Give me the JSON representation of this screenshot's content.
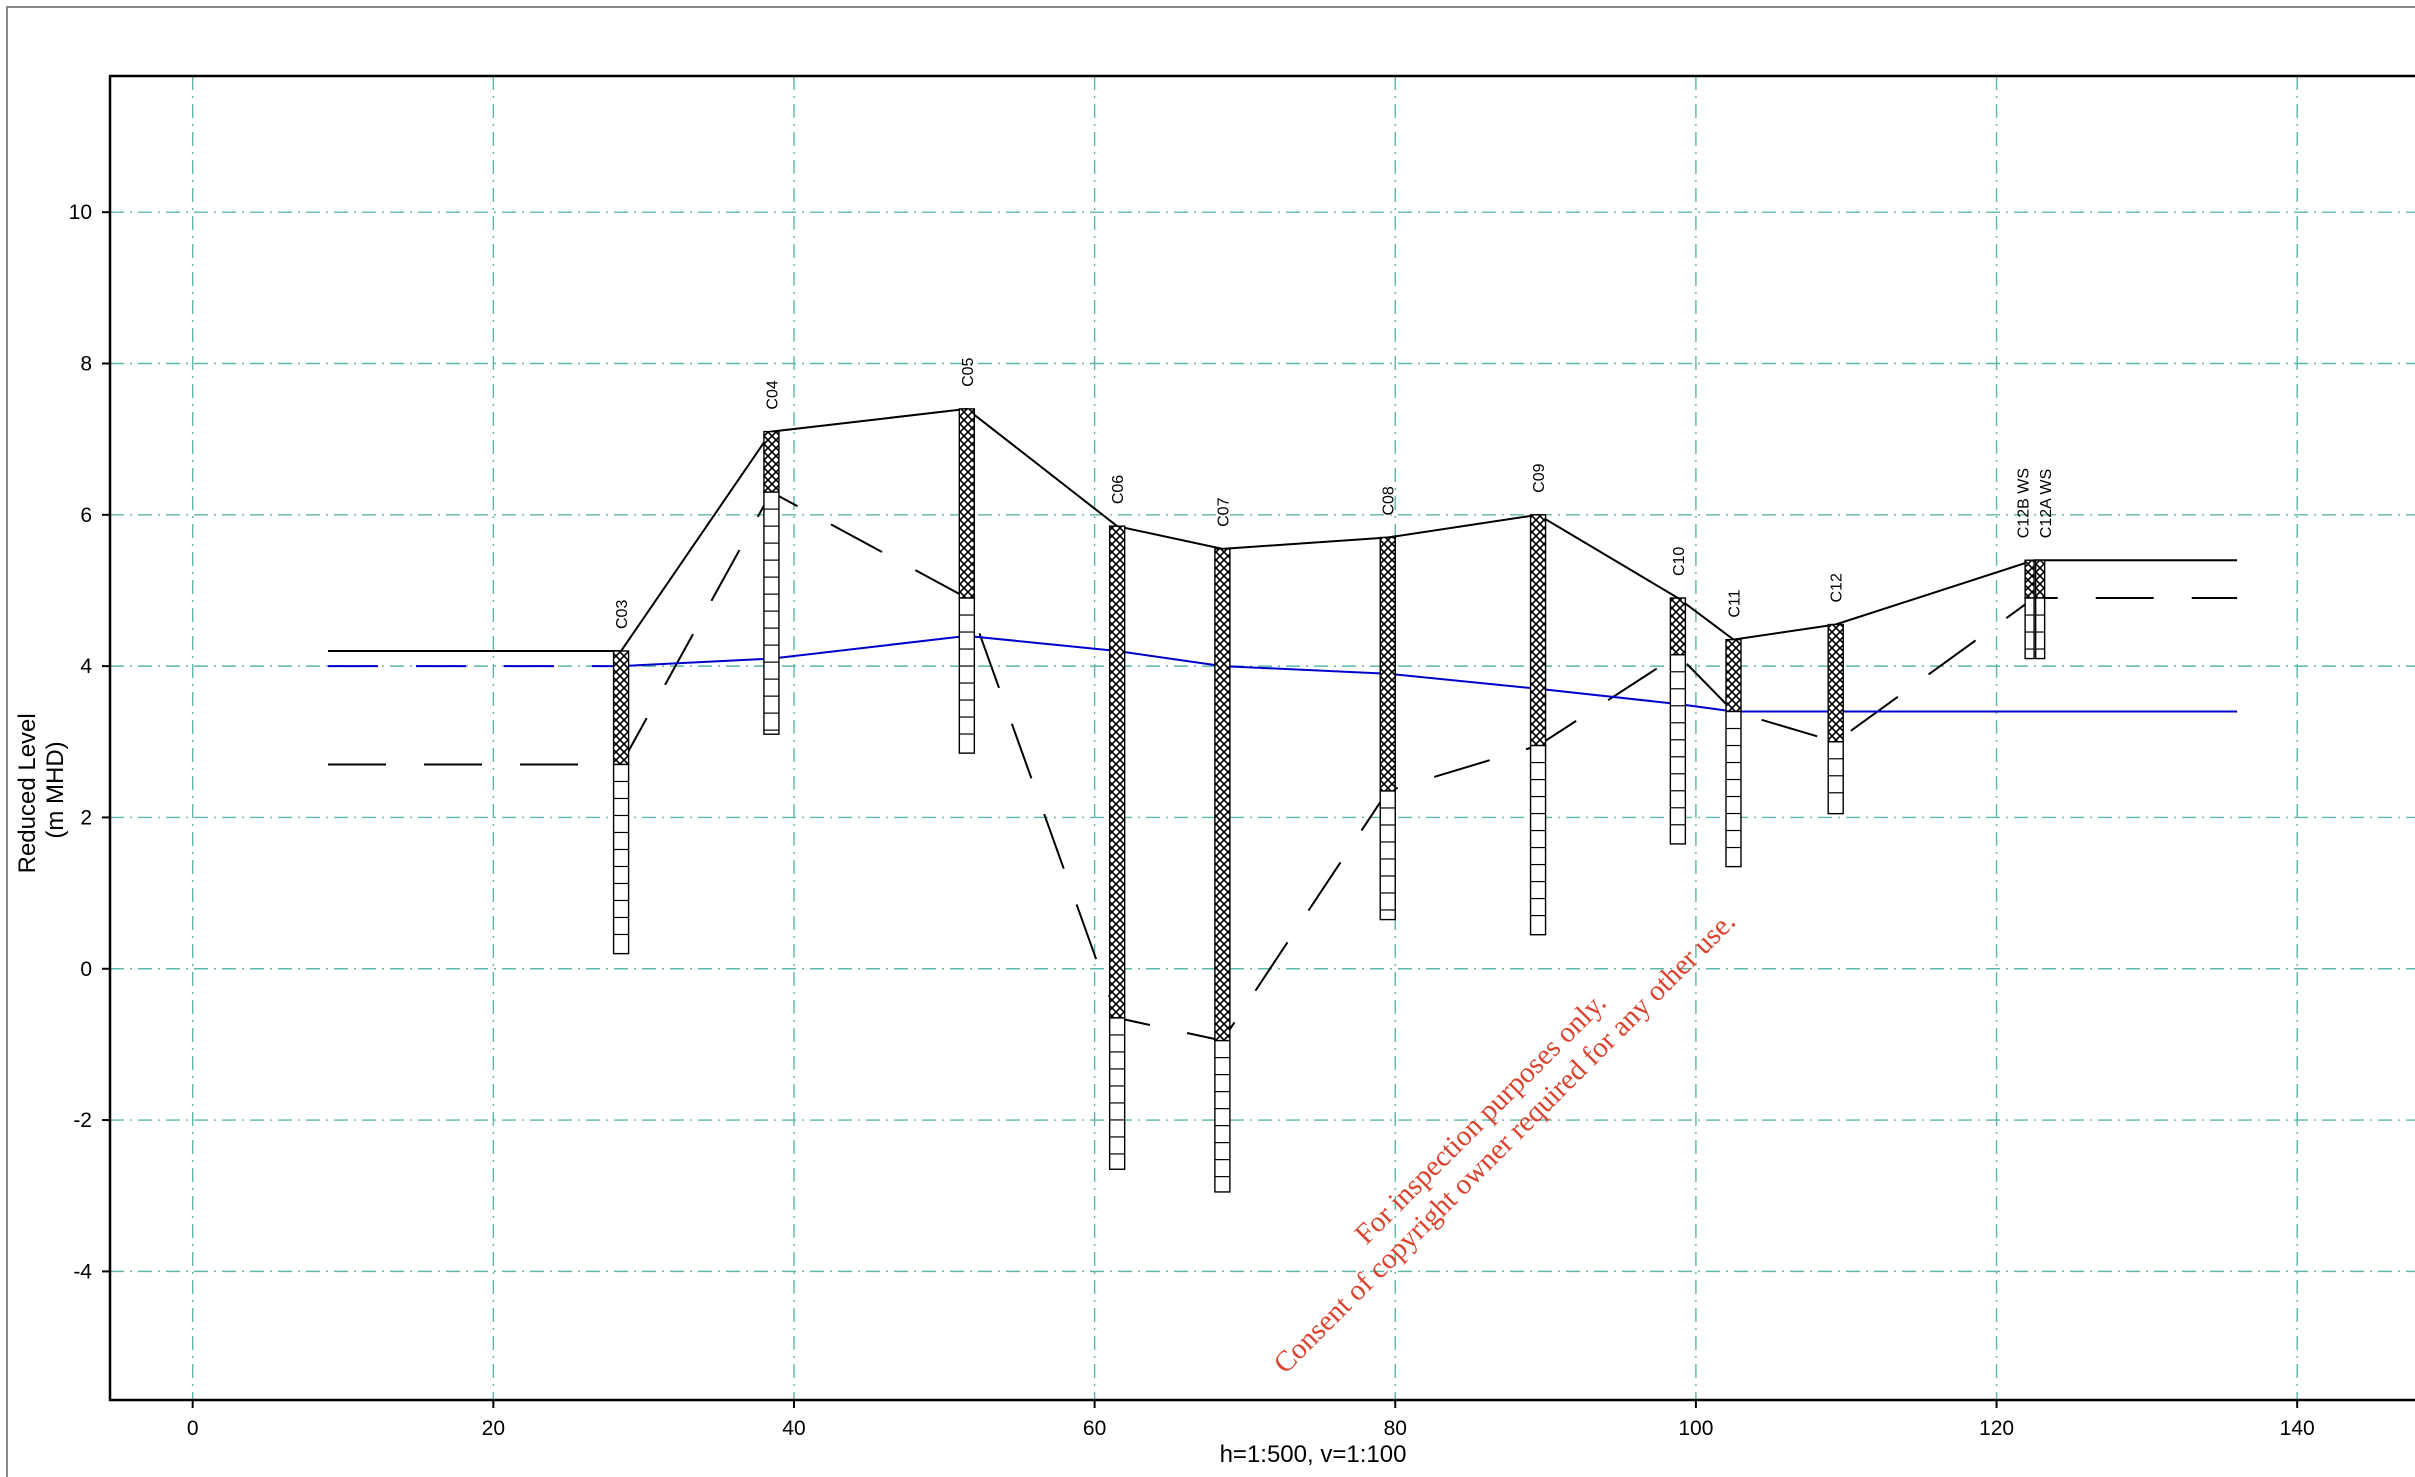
{
  "chart_data": {
    "type": "line",
    "xlabel": "h=1:500, v=1:100",
    "ylabel": [
      "Reduced Level",
      "(m MHD)"
    ],
    "xlim": [
      -5.5,
      149.5
    ],
    "ylim": [
      -5.7,
      11.8
    ],
    "x_ticks": [
      0,
      20,
      40,
      60,
      80,
      100,
      120,
      140
    ],
    "y_ticks": [
      -4,
      -2,
      0,
      2,
      4,
      6,
      8,
      10
    ],
    "grid": true,
    "boreholes": [
      {
        "name": "C03",
        "x": 28.5,
        "top": 4.2,
        "bottom": 0.2,
        "fill_to": 2.7
      },
      {
        "name": "C04",
        "x": 38.5,
        "top": 7.1,
        "bottom": 3.1,
        "fill_to": 6.3
      },
      {
        "name": "C05",
        "x": 51.5,
        "top": 7.4,
        "bottom": 2.85,
        "fill_to": 4.9
      },
      {
        "name": "C06",
        "x": 61.5,
        "top": 5.85,
        "bottom": -2.65,
        "fill_to": -0.65
      },
      {
        "name": "C07",
        "x": 68.5,
        "top": 5.55,
        "bottom": -2.95,
        "fill_to": -0.95
      },
      {
        "name": "C08",
        "x": 79.5,
        "top": 5.7,
        "bottom": 0.65,
        "fill_to": 2.35
      },
      {
        "name": "C09",
        "x": 89.5,
        "top": 6.0,
        "bottom": 0.45,
        "fill_to": 2.95
      },
      {
        "name": "C10",
        "x": 98.8,
        "top": 4.9,
        "bottom": 1.65,
        "fill_to": 4.15
      },
      {
        "name": "C11",
        "x": 102.5,
        "top": 4.35,
        "bottom": 1.35,
        "fill_to": 3.4
      },
      {
        "name": "C12",
        "x": 109.3,
        "top": 4.55,
        "bottom": 2.05,
        "fill_to": 3.0
      },
      {
        "name": "C12B WS",
        "x": 122.2,
        "top": 5.4,
        "bottom": 4.1,
        "fill_to": 4.9
      },
      {
        "name": "C12A WS",
        "x": 122.9,
        "top": 5.4,
        "bottom": 4.1,
        "fill_to": 4.9
      }
    ],
    "series": [
      {
        "color": "#000000",
        "style": "solid",
        "points": [
          [
            9,
            4.2
          ],
          [
            28.5,
            4.2
          ],
          [
            38.5,
            7.1
          ],
          [
            51.5,
            7.4
          ],
          [
            61.5,
            5.85
          ],
          [
            68.5,
            5.55
          ],
          [
            79.5,
            5.7
          ],
          [
            89.5,
            6.0
          ],
          [
            98.8,
            4.9
          ],
          [
            102.5,
            4.35
          ],
          [
            109.3,
            4.55
          ],
          [
            122.5,
            5.4
          ],
          [
            136,
            5.4
          ]
        ]
      },
      {
        "color": "#000000",
        "style": "dashed",
        "points": [
          [
            9,
            2.7
          ],
          [
            28.5,
            2.7
          ],
          [
            38.5,
            6.3
          ],
          [
            51.5,
            4.9
          ],
          [
            61.5,
            -0.65
          ],
          [
            68.5,
            -0.95
          ],
          [
            79.5,
            2.35
          ],
          [
            89.5,
            2.95
          ],
          [
            98.8,
            4.15
          ],
          [
            102.5,
            3.4
          ],
          [
            109.3,
            3.0
          ],
          [
            122.5,
            4.9
          ],
          [
            136,
            4.9
          ]
        ]
      },
      {
        "color": "#0000cc",
        "style": "solid-then-dashed",
        "points": [
          [
            9,
            4.0
          ],
          [
            28.5,
            4.0
          ],
          [
            38.5,
            4.1
          ],
          [
            51.5,
            4.4
          ],
          [
            61.5,
            4.2
          ],
          [
            68.5,
            4.0
          ],
          [
            79.5,
            3.9
          ],
          [
            89.5,
            3.7
          ],
          [
            98.8,
            3.5
          ],
          [
            102.5,
            3.4
          ],
          [
            114,
            3.4
          ],
          [
            136,
            3.4
          ]
        ]
      }
    ]
  },
  "watermark": {
    "line1": "For inspection purposes only.",
    "line2": "Consent of copyright owner required for any other use."
  },
  "colors": {
    "grid": "#5cb8a8",
    "groundwater": "#0000cc",
    "watermark": "#d9432f"
  }
}
